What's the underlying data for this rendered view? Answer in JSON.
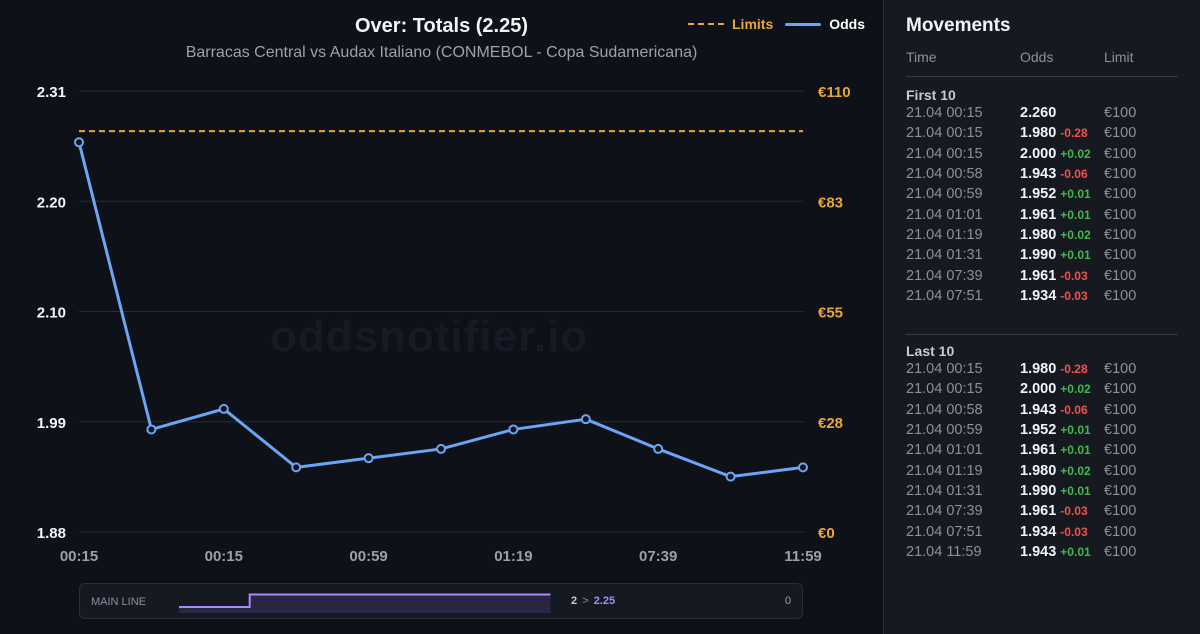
{
  "chart": {
    "title": "Over: Totals (2.25)",
    "subtitle": "Barracas Central vs Audax Italiano (CONMEBOL - Copa Sudamericana)",
    "watermark": "oddsnotifier.io"
  },
  "colors": {
    "background": "#0e1118",
    "odds_line": "#6aa6f5",
    "limits_line": "#e8a838",
    "positive": "#3fb950",
    "negative": "#f0524f",
    "navigator_line": "#a78bfa"
  },
  "chart_data": {
    "type": "line",
    "title": "Over: Totals (2.25)",
    "subtitle": "Barracas Central vs Audax Italiano (CONMEBOL - Copa Sudamericana)",
    "x_tick_labels": [
      "00:15",
      "00:15",
      "00:59",
      "01:19",
      "07:39",
      "11:59"
    ],
    "y_left": {
      "ticks": [
        "2.31",
        "2.20",
        "2.10",
        "1.99",
        "1.88"
      ],
      "ylim": [
        1.88,
        2.31
      ]
    },
    "y_right": {
      "ticks": [
        "€110",
        "€83",
        "€55",
        "€28",
        "€0"
      ],
      "ylim": [
        0,
        110
      ]
    },
    "grid": true,
    "legend_position": "top-right",
    "series": [
      {
        "name": "Odds",
        "axis": "left",
        "style": "solid",
        "values": [
          2.26,
          1.98,
          2.0,
          1.943,
          1.952,
          1.961,
          1.98,
          1.99,
          1.961,
          1.934,
          1.943
        ]
      },
      {
        "name": "Limits",
        "axis": "right",
        "style": "dashed",
        "values": [
          100,
          100,
          100,
          100,
          100,
          100,
          100,
          100,
          100,
          100,
          100
        ]
      }
    ]
  },
  "navigator": {
    "label": "MAIN LINE",
    "from": "2",
    "arrow": ">",
    "to": "2.25",
    "right_value": "0",
    "steps": [
      2,
      2,
      2.25,
      2.25,
      2.25,
      2.25,
      2.25,
      2.25,
      2.25,
      2.25,
      2.25
    ]
  },
  "panel": {
    "title": "Movements",
    "headers": {
      "time": "Time",
      "odds": "Odds",
      "limit": "Limit"
    },
    "sections": [
      {
        "title": "First 10",
        "rows": [
          {
            "time": "21.04 00:15",
            "odds": "2.260",
            "delta": "",
            "limit": "€100"
          },
          {
            "time": "21.04 00:15",
            "odds": "1.980",
            "delta": "-0.28",
            "limit": "€100"
          },
          {
            "time": "21.04 00:15",
            "odds": "2.000",
            "delta": "+0.02",
            "limit": "€100"
          },
          {
            "time": "21.04 00:58",
            "odds": "1.943",
            "delta": "-0.06",
            "limit": "€100"
          },
          {
            "time": "21.04 00:59",
            "odds": "1.952",
            "delta": "+0.01",
            "limit": "€100"
          },
          {
            "time": "21.04 01:01",
            "odds": "1.961",
            "delta": "+0.01",
            "limit": "€100"
          },
          {
            "time": "21.04 01:19",
            "odds": "1.980",
            "delta": "+0.02",
            "limit": "€100"
          },
          {
            "time": "21.04 01:31",
            "odds": "1.990",
            "delta": "+0.01",
            "limit": "€100"
          },
          {
            "time": "21.04 07:39",
            "odds": "1.961",
            "delta": "-0.03",
            "limit": "€100"
          },
          {
            "time": "21.04 07:51",
            "odds": "1.934",
            "delta": "-0.03",
            "limit": "€100"
          }
        ]
      },
      {
        "title": "Last 10",
        "rows": [
          {
            "time": "21.04 00:15",
            "odds": "1.980",
            "delta": "-0.28",
            "limit": "€100"
          },
          {
            "time": "21.04 00:15",
            "odds": "2.000",
            "delta": "+0.02",
            "limit": "€100"
          },
          {
            "time": "21.04 00:58",
            "odds": "1.943",
            "delta": "-0.06",
            "limit": "€100"
          },
          {
            "time": "21.04 00:59",
            "odds": "1.952",
            "delta": "+0.01",
            "limit": "€100"
          },
          {
            "time": "21.04 01:01",
            "odds": "1.961",
            "delta": "+0.01",
            "limit": "€100"
          },
          {
            "time": "21.04 01:19",
            "odds": "1.980",
            "delta": "+0.02",
            "limit": "€100"
          },
          {
            "time": "21.04 01:31",
            "odds": "1.990",
            "delta": "+0.01",
            "limit": "€100"
          },
          {
            "time": "21.04 07:39",
            "odds": "1.961",
            "delta": "-0.03",
            "limit": "€100"
          },
          {
            "time": "21.04 07:51",
            "odds": "1.934",
            "delta": "-0.03",
            "limit": "€100"
          },
          {
            "time": "21.04 11:59",
            "odds": "1.943",
            "delta": "+0.01",
            "limit": "€100"
          }
        ]
      }
    ]
  }
}
